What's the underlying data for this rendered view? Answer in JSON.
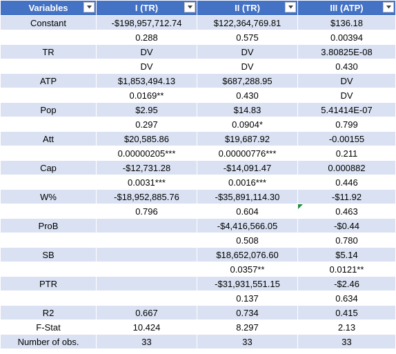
{
  "headers": [
    {
      "label": "Variables"
    },
    {
      "label": "I (TR)"
    },
    {
      "label": "II (TR)"
    },
    {
      "label": "III (ATP)"
    }
  ],
  "rows": [
    {
      "label": "Constant",
      "cells": [
        "-$198,957,712.74",
        "$122,364,769.81",
        "$136.18"
      ]
    },
    {
      "label": "",
      "cells": [
        "0.288",
        "0.575",
        "0.00394"
      ]
    },
    {
      "label": "TR",
      "cells": [
        "DV",
        "DV",
        "3.80825E-08"
      ]
    },
    {
      "label": "",
      "cells": [
        "DV",
        "DV",
        "0.430"
      ]
    },
    {
      "label": "ATP",
      "cells": [
        "$1,853,494.13",
        "$687,288.95",
        "DV"
      ]
    },
    {
      "label": "",
      "cells": [
        "0.0169**",
        "0.430",
        "DV"
      ]
    },
    {
      "label": "Pop",
      "cells": [
        "$2.95",
        "$14.83",
        "5.41414E-07"
      ]
    },
    {
      "label": "",
      "cells": [
        "0.297",
        "0.0904*",
        "0.799"
      ]
    },
    {
      "label": "Att",
      "cells": [
        "$20,585.86",
        "$19,687.92",
        "-0.00155"
      ]
    },
    {
      "label": "",
      "cells": [
        "0.00000205***",
        "0.00000776***",
        "0.211"
      ]
    },
    {
      "label": "Cap",
      "cells": [
        "-$12,731.28",
        "-$14,091.47",
        "0.000882"
      ]
    },
    {
      "label": "",
      "cells": [
        "0.0031***",
        "0.0016***",
        "0.446"
      ]
    },
    {
      "label": "W%",
      "cells": [
        "-$18,952,885.76",
        "-$35,891,114.30",
        "-$11.92"
      ]
    },
    {
      "label": "",
      "cells": [
        "0.796",
        "0.604",
        "0.463"
      ]
    },
    {
      "label": "ProB",
      "cells": [
        "",
        "-$4,416,566.05",
        "-$0.44"
      ]
    },
    {
      "label": "",
      "cells": [
        "",
        "0.508",
        "0.780"
      ]
    },
    {
      "label": "SB",
      "cells": [
        "",
        "$18,652,076.60",
        "$5.14"
      ]
    },
    {
      "label": "",
      "cells": [
        "",
        "0.0357**",
        "0.0121**"
      ]
    },
    {
      "label": "PTR",
      "cells": [
        "",
        "-$31,931,551.15",
        "-$2.46"
      ]
    },
    {
      "label": "",
      "cells": [
        "",
        "0.137",
        "0.634"
      ]
    },
    {
      "label": "R2",
      "cells": [
        "0.667",
        "0.734",
        "0.415"
      ]
    },
    {
      "label": "F-Stat",
      "cells": [
        "10.424",
        "8.297",
        "2.13"
      ]
    },
    {
      "label": "Number of obs.",
      "cells": [
        "33",
        "33",
        "33"
      ]
    }
  ],
  "colors": {
    "header_bg": "#4472c4",
    "band_bg": "#d9e1f2",
    "note_marker": "#1e8c3a"
  },
  "icons": {
    "filter": "filter-dropdown-icon",
    "note": "cell-note-marker"
  }
}
